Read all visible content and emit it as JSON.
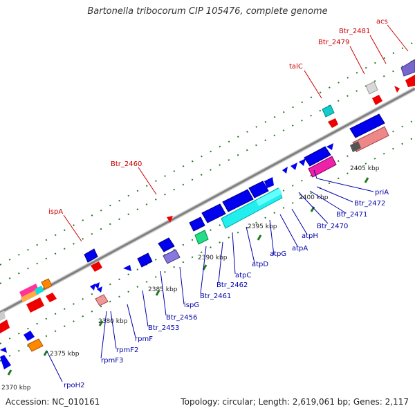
{
  "title": "Bartonella tribocorum CIP 105476, complete genome",
  "footer": {
    "accession": "Accession: NC_010161",
    "summary": "Topology: circular; Length: 2,619,061 bp; Genes: 2,117"
  },
  "colors": {
    "backbone": "#8c8c8c",
    "dots": "#1e7a1e",
    "cds": "#0000dd",
    "rna": "#00dddd",
    "red_label": "#cc0000",
    "blue_label": "#0000aa"
  },
  "scale_labels": [
    "2370 kbp",
    "2375 kbp",
    "2380 kbp",
    "2385 kbp",
    "2390 kbp",
    "2395 kbp",
    "2400 kbp",
    "2405 kbp"
  ],
  "upper_labels": [
    "acs",
    "Btr_2481",
    "Btr_2479",
    "talC",
    "Btr_2460",
    "ispA"
  ],
  "lower_labels": [
    "priA",
    "Btr_2472",
    "Btr_2471",
    "Btr_2470",
    "atpH",
    "atpA",
    "atpG",
    "atpD",
    "atpC",
    "Btr_2462",
    "Btr_2461",
    "ispG",
    "Btr_2456",
    "Btr_2453",
    "rpmF",
    "rpmF2",
    "rpmF3",
    "rpoH2"
  ]
}
